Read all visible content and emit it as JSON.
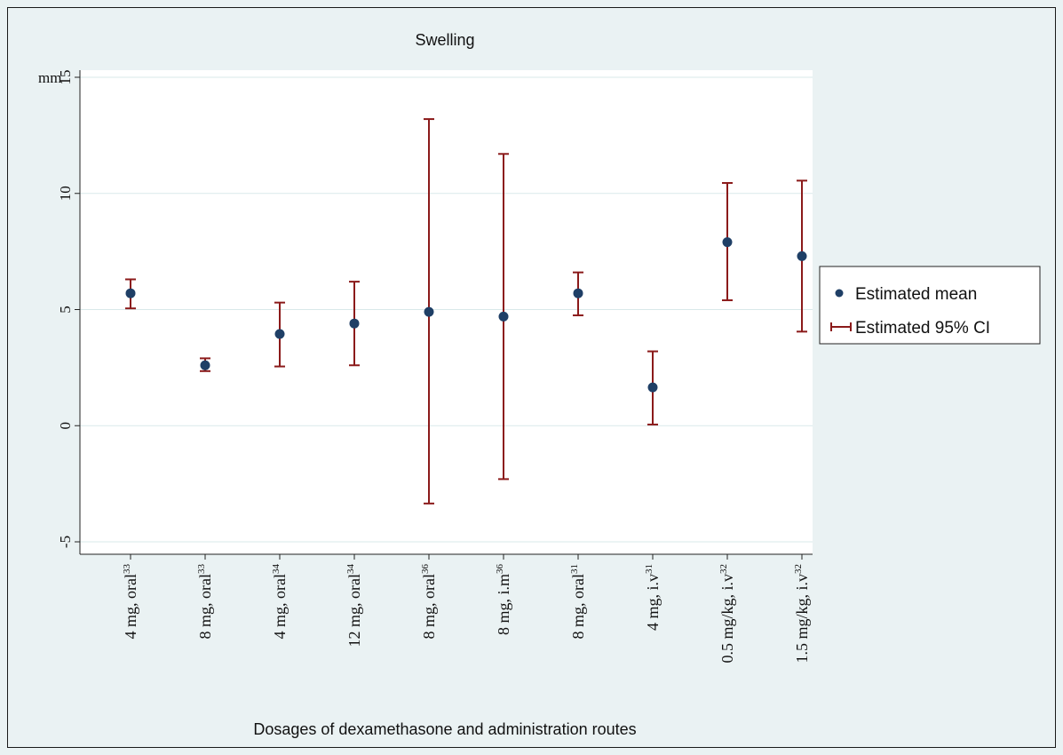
{
  "chart_data": {
    "type": "scatter",
    "title": "Swelling",
    "xlabel": "Dosages of dexamethasone and administration routes",
    "ylabel": "mm",
    "ylim": [
      -5,
      15
    ],
    "yticks": [
      "-5",
      "0",
      "5",
      "10",
      "15"
    ],
    "grid": true,
    "legend_position": "right",
    "categories": [
      {
        "label": "4 mg, oral",
        "ref": "33"
      },
      {
        "label": "8 mg, oral",
        "ref": "33"
      },
      {
        "label": "4 mg, oral",
        "ref": "34"
      },
      {
        "label": "12 mg, oral",
        "ref": "34"
      },
      {
        "label": "8 mg, oral",
        "ref": "36"
      },
      {
        "label": "8 mg, i.m",
        "ref": "36"
      },
      {
        "label": "8 mg, oral",
        "ref": "31"
      },
      {
        "label": "4 mg, i.v",
        "ref": "31"
      },
      {
        "label": "0.5 mg/kg, i.v",
        "ref": "32"
      },
      {
        "label": "1.5 mg/kg, i.v",
        "ref": "32"
      }
    ],
    "series": [
      {
        "name": "Estimated mean",
        "values": [
          5.7,
          2.6,
          3.95,
          4.4,
          4.9,
          4.7,
          5.7,
          1.65,
          7.9,
          7.3
        ]
      },
      {
        "name": "Estimated 95% CI",
        "lower": [
          5.05,
          2.35,
          2.55,
          2.6,
          -3.35,
          -2.3,
          4.75,
          0.05,
          5.4,
          4.05
        ],
        "upper": [
          6.3,
          2.9,
          5.3,
          6.2,
          13.2,
          11.7,
          6.6,
          3.2,
          10.45,
          10.55
        ]
      }
    ],
    "colors": {
      "mean": "#1f3f66",
      "ci": "#8b1a1a",
      "grid": "#d9e9ea",
      "plot_bg": "#ffffff",
      "outer_bg": "#eaf2f3"
    }
  }
}
